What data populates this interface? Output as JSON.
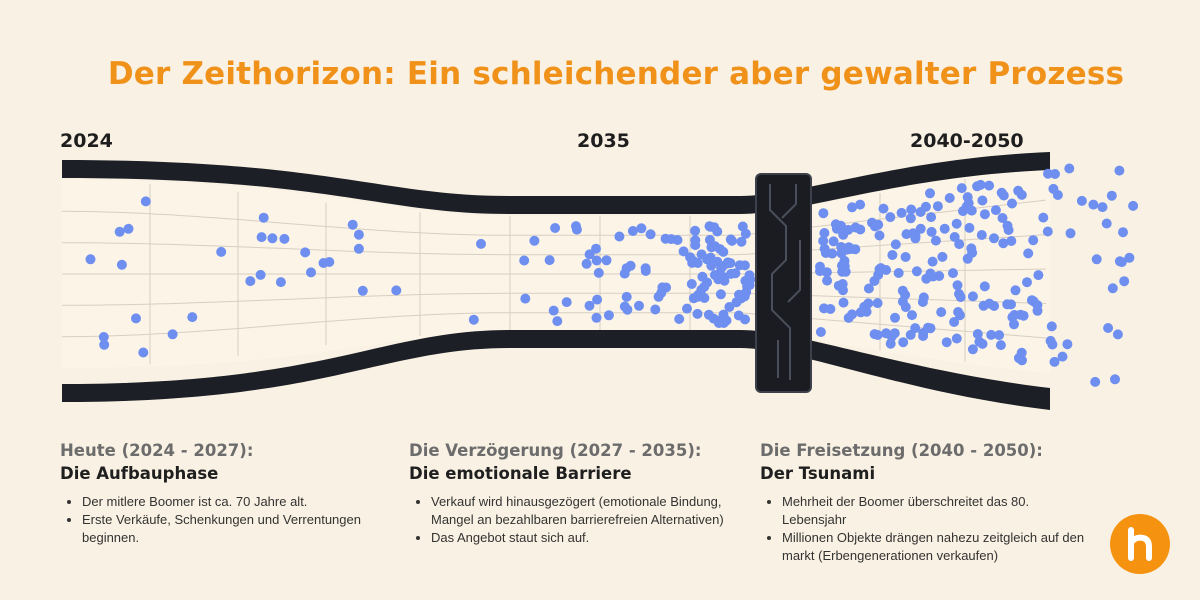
{
  "title": "Der Zeithorizon: Ein schleichender aber gewalter Prozess",
  "timeline": {
    "labels": [
      "2024",
      "2035",
      "2040-2050"
    ]
  },
  "phases": [
    {
      "period": "Heute (2024 - 2027):",
      "name": "Die Aufbauphase",
      "bullets": [
        "Der mitlere Boomer ist ca. 70 Jahre alt.",
        "Erste Verkäufe, Schenkungen und Verrentungen beginnen."
      ]
    },
    {
      "period": "Die Verzögerung (2027 - 2035):",
      "name": "Die emotionale Barriere",
      "bullets": [
        "Verkauf wird hinausgezögert (emotionale Bindung, Mangel an bezahlbaren barrierefreien Alternativen)",
        "Das Angebot staut sich auf."
      ]
    },
    {
      "period": "Die Freisetzung (2040 - 2050):",
      "name": "Der Tsunami",
      "bullets": [
        "Mehrheit der Boomer überschreitet das 80. Lebensjahr",
        "Millionen Objekte drängen nahezu zeitgleich auf den markt (Erbengenerationen verkaufen)"
      ]
    }
  ],
  "colors": {
    "title": "#f0921a",
    "dot": "#6f8ff0",
    "pipe": "#1d1f26",
    "background": "#f9f1e3",
    "logo": "#f5920f"
  },
  "icons": {
    "gate": "circuit-gate-icon",
    "logo": "h-house-logo-icon"
  }
}
